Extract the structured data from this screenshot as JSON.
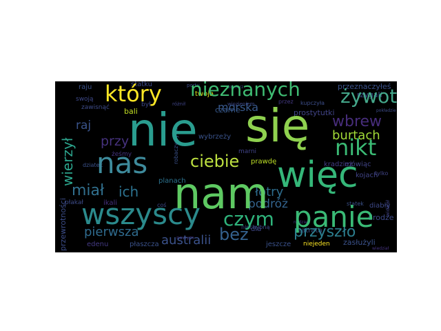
{
  "canvas": {
    "background": "#000000",
    "page_background": "#ffffff"
  },
  "words": {
    "nie": {
      "text": "nie",
      "color": "#2a9d8f"
    },
    "sie": {
      "text": "się",
      "color": "#8fd14f"
    },
    "nam": {
      "text": "nam",
      "color": "#5ec962"
    },
    "wiec": {
      "text": "więc",
      "color": "#35b779"
    },
    "nas": {
      "text": "nas",
      "color": "#3e8b9c"
    },
    "ktory": {
      "text": "który",
      "color": "#fde725"
    },
    "nieznanych": {
      "text": "nieznanych",
      "color": "#3fbc73"
    },
    "zywot": {
      "text": "żywot",
      "color": "#44a78a"
    },
    "wbrew": {
      "text": "wbrew",
      "color": "#472d7b"
    },
    "nikt": {
      "text": "nikt",
      "color": "#3bbb75"
    },
    "ciebie": {
      "text": "ciebie",
      "color": "#bde040"
    },
    "wierzyl": {
      "text": "wierzył",
      "color": "#2ca58d"
    },
    "mial": {
      "text": "miał",
      "color": "#31708e"
    },
    "ich": {
      "text": "ich",
      "color": "#2c718e"
    },
    "wszyscy": {
      "text": "wszyscy",
      "color": "#2b8a8c"
    },
    "panie": {
      "text": "panie",
      "color": "#3aba76"
    },
    "czym": {
      "text": "czym",
      "color": "#2fb47c"
    },
    "przyszlo": {
      "text": "przyszło",
      "color": "#2c7e8e"
    },
    "bez": {
      "text": "bez",
      "color": "#34618d"
    },
    "australii": {
      "text": "australii",
      "color": "#3b528b"
    },
    "pierwsza": {
      "text": "pierwsza",
      "color": "#2f6b8e"
    },
    "morska": {
      "text": "morska",
      "color": "#38598c"
    },
    "burtach": {
      "text": "burtach",
      "color": "#a2da37"
    },
    "lotry": {
      "text": "łotry",
      "color": "#2e6d8e"
    },
    "raj": {
      "text": "raj",
      "color": "#3a548c"
    },
    "przy": {
      "text": "przy",
      "color": "#46327e"
    },
    "podroz": {
      "text": "podróż",
      "color": "#33638d"
    },
    "rzygali": {
      "text": "rzygali",
      "color": "#3d4d8a"
    },
    "prostytutki": {
      "text": "prostytutki",
      "color": "#414487"
    },
    "przeznaczyles": {
      "text": "przeznaczyłeś",
      "color": "#3b528b"
    },
    "twoja": {
      "text": "twoja",
      "color": "#d8e219"
    },
    "bali": {
      "text": "bali",
      "color": "#c2df23"
    },
    "zawisnac": {
      "text": "zawisnąć",
      "color": "#3e4c8a"
    },
    "raju": {
      "text": "raju",
      "color": "#3b528b"
    },
    "statku": {
      "text": "statku",
      "color": "#3e4989"
    },
    "czarne": {
      "text": "czarne",
      "color": "#38598c"
    },
    "wybrzezy": {
      "text": "wybrzeży",
      "color": "#3a538b"
    },
    "marni": {
      "text": "marni",
      "color": "#404387"
    },
    "planach": {
      "text": "planach",
      "color": "#2c728e"
    },
    "ikali": {
      "text": "ikali",
      "color": "#46317e"
    },
    "edenu": {
      "text": "edenu",
      "color": "#443a83"
    },
    "plaszcza": {
      "text": "płaszcza",
      "color": "#3b528b"
    },
    "jeszcze": {
      "text": "jeszcze",
      "color": "#3b528b"
    },
    "niejeden": {
      "text": "niejeden",
      "color": "#fde725"
    },
    "drodze": {
      "text": "drodze",
      "color": "#3e4a89"
    },
    "zasluzyli": {
      "text": "zasłużyli",
      "color": "#3b528b"
    },
    "diably": {
      "text": "diabły",
      "color": "#3e4989"
    },
    "kojach": {
      "text": "kojach",
      "color": "#414487"
    },
    "mowiac": {
      "text": "mówiąc",
      "color": "#414487"
    },
    "kradziez": {
      "text": "kradzież",
      "color": "#433d84"
    },
    "prawde": {
      "text": "prawdę",
      "color": "#bddf26"
    },
    "dla": {
      "text": "dla",
      "color": "#3f4788"
    },
    "zatrata": {
      "text": "zatratą",
      "color": "#3b528b"
    },
    "przewrotnosci": {
      "text": "przewrotności",
      "color": "#3d4e8a"
    },
    "zeszmy": {
      "text": "żeśmy",
      "color": "#453581"
    },
    "dziatek": {
      "text": "dziatek",
      "color": "#3b528b"
    },
    "cos": {
      "text": "coś",
      "color": "#3e4989"
    },
    "nowym": {
      "text": "nowym",
      "color": "#46317e"
    },
    "niechybna": {
      "text": "niechybną",
      "color": "#3e4c8a"
    },
    "swoja": {
      "text": "swoją",
      "color": "#3e4989"
    },
    "byl": {
      "text": "był",
      "color": "#3e4989"
    },
    "przez": {
      "text": "przez",
      "color": "#443983"
    },
    "kupczyla": {
      "text": "kupczyła",
      "color": "#3d4e8a"
    },
    "wiezieniem": {
      "text": "więzieniem",
      "color": "#3e4989"
    },
    "roznil": {
      "text": "różnił",
      "color": "#404588"
    },
    "portu": {
      "text": "portu",
      "color": "#3e4c8a"
    },
    "zolnierz": {
      "text": "żołnierz",
      "color": "#3b528b"
    },
    "statek": {
      "text": "statek",
      "color": "#3b528b"
    },
    "tylko": {
      "text": "tylko",
      "color": "#414487"
    },
    "widzial": {
      "text": "widział",
      "color": "#414487"
    },
    "plakal": {
      "text": "płakał",
      "color": "#3e4c8a"
    },
    "nadziei": {
      "text": "nadziei",
      "color": "#443983"
    },
    "robaczywych": {
      "text": "robaczywych",
      "color": "#3b528b"
    },
    "pokladzie": {
      "text": "pokładzie",
      "color": "#3e4c8a"
    },
    "wiedzial": {
      "text": "wiedział",
      "color": "#46337f"
    }
  }
}
